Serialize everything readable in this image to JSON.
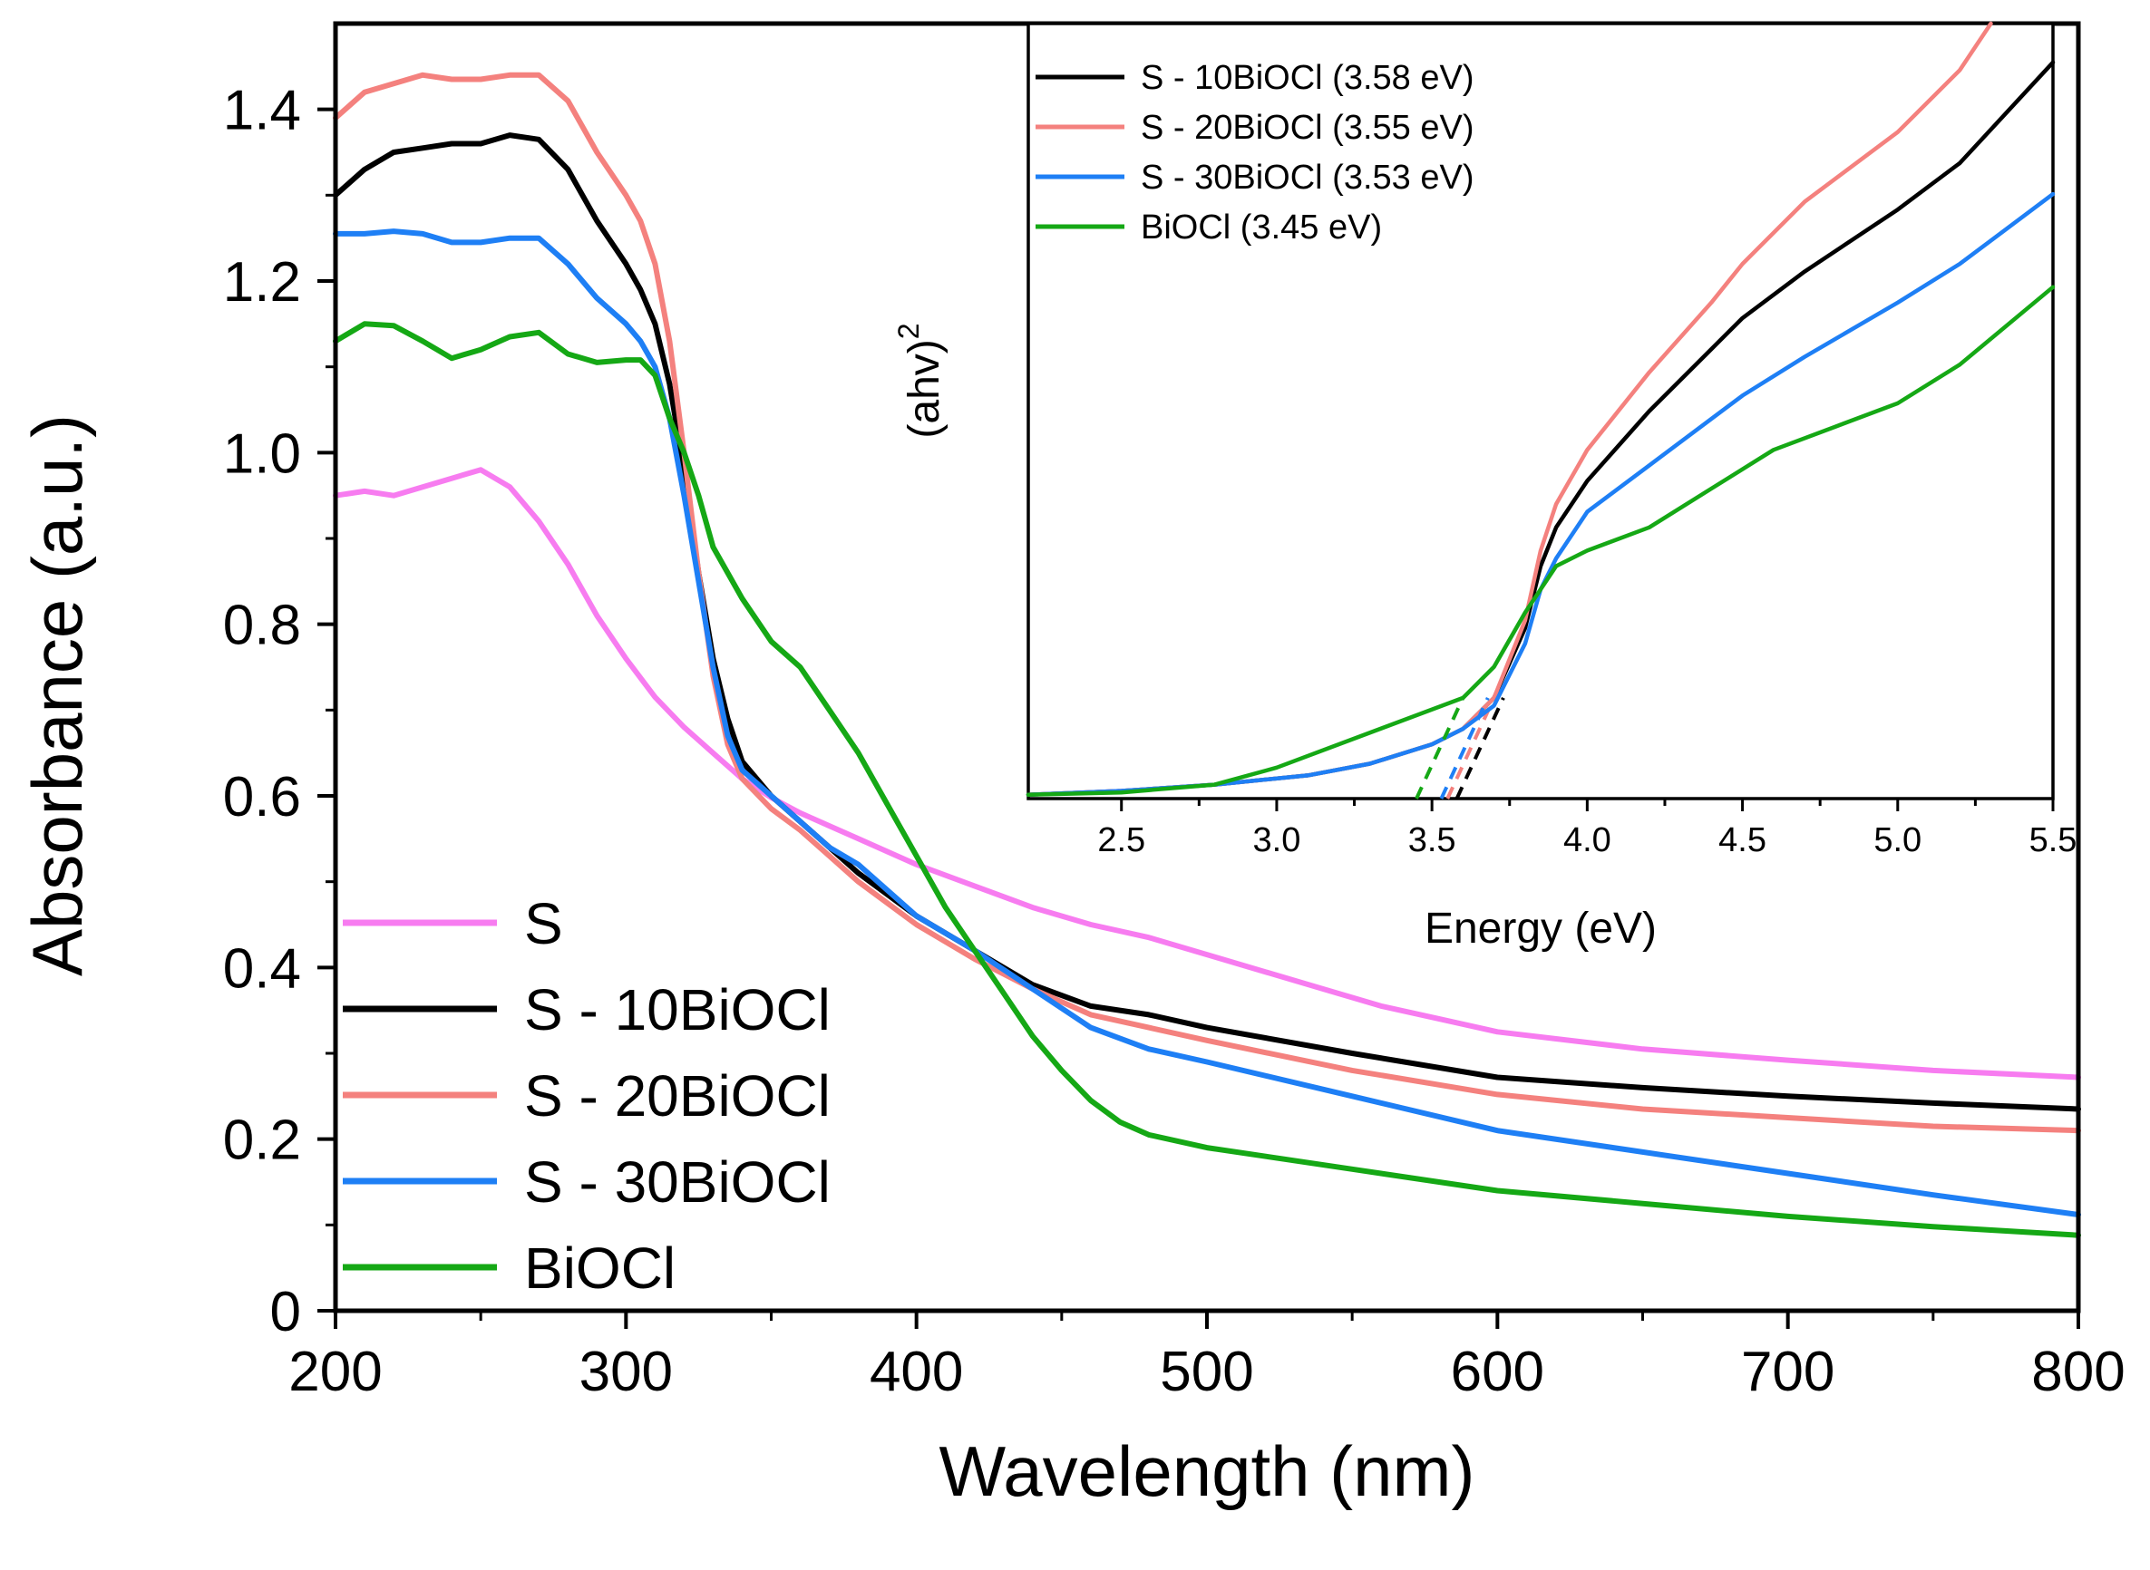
{
  "chart_data": [
    {
      "type": "line",
      "title": "",
      "xlabel": "Wavelength (nm)",
      "ylabel": "Absorbance (a.u.)",
      "xlim": [
        200,
        800
      ],
      "ylim": [
        0,
        1.5
      ],
      "xticks": [
        "200",
        "300",
        "400",
        "500",
        "600",
        "700",
        "800"
      ],
      "yticks": [
        "0",
        "0.2",
        "0.4",
        "0.6",
        "0.8",
        "1.0",
        "1.2",
        "1.4"
      ],
      "legend_position": "bottom-left",
      "series": [
        {
          "name": "S",
          "color": "#f77cf0",
          "x": [
            200,
            210,
            220,
            230,
            240,
            250,
            260,
            270,
            280,
            290,
            300,
            310,
            320,
            330,
            340,
            350,
            360,
            370,
            380,
            390,
            400,
            420,
            440,
            460,
            480,
            500,
            520,
            540,
            560,
            580,
            600,
            650,
            700,
            750,
            800
          ],
          "y": [
            0.95,
            0.955,
            0.95,
            0.96,
            0.97,
            0.98,
            0.96,
            0.92,
            0.87,
            0.81,
            0.76,
            0.715,
            0.68,
            0.65,
            0.62,
            0.598,
            0.58,
            0.565,
            0.55,
            0.535,
            0.52,
            0.495,
            0.47,
            0.45,
            0.435,
            0.415,
            0.395,
            0.375,
            0.355,
            0.34,
            0.325,
            0.305,
            0.292,
            0.28,
            0.272
          ]
        },
        {
          "name": "S - 10BiOCl",
          "color": "#000000",
          "x": [
            200,
            210,
            220,
            230,
            240,
            250,
            260,
            270,
            280,
            290,
            300,
            305,
            310,
            315,
            320,
            325,
            330,
            335,
            340,
            350,
            360,
            370,
            380,
            400,
            420,
            440,
            460,
            480,
            500,
            550,
            600,
            650,
            700,
            750,
            800
          ],
          "y": [
            1.3,
            1.33,
            1.35,
            1.355,
            1.36,
            1.36,
            1.37,
            1.365,
            1.33,
            1.27,
            1.22,
            1.19,
            1.15,
            1.08,
            0.98,
            0.86,
            0.76,
            0.69,
            0.64,
            0.6,
            0.57,
            0.54,
            0.51,
            0.46,
            0.42,
            0.38,
            0.355,
            0.345,
            0.33,
            0.3,
            0.272,
            0.26,
            0.25,
            0.242,
            0.235
          ]
        },
        {
          "name": "S - 20BiOCl",
          "color": "#f4817e",
          "x": [
            200,
            210,
            220,
            230,
            240,
            250,
            260,
            270,
            280,
            290,
            300,
            305,
            310,
            315,
            320,
            325,
            330,
            335,
            340,
            350,
            360,
            370,
            380,
            400,
            420,
            440,
            460,
            480,
            500,
            550,
            600,
            650,
            700,
            750,
            800
          ],
          "y": [
            1.39,
            1.42,
            1.43,
            1.44,
            1.435,
            1.435,
            1.44,
            1.44,
            1.41,
            1.35,
            1.3,
            1.27,
            1.22,
            1.13,
            1.0,
            0.86,
            0.74,
            0.66,
            0.62,
            0.585,
            0.56,
            0.53,
            0.5,
            0.45,
            0.41,
            0.375,
            0.345,
            0.33,
            0.315,
            0.28,
            0.252,
            0.235,
            0.225,
            0.215,
            0.21
          ]
        },
        {
          "name": "S - 30BiOCl",
          "color": "#1e7ff5",
          "x": [
            200,
            210,
            220,
            230,
            240,
            250,
            260,
            270,
            280,
            290,
            300,
            305,
            310,
            315,
            320,
            325,
            330,
            335,
            340,
            350,
            360,
            370,
            380,
            400,
            420,
            440,
            460,
            480,
            500,
            550,
            600,
            650,
            700,
            750,
            800
          ],
          "y": [
            1.255,
            1.255,
            1.258,
            1.255,
            1.245,
            1.245,
            1.25,
            1.25,
            1.22,
            1.18,
            1.15,
            1.13,
            1.1,
            1.04,
            0.95,
            0.85,
            0.75,
            0.67,
            0.63,
            0.6,
            0.57,
            0.54,
            0.52,
            0.46,
            0.42,
            0.375,
            0.33,
            0.305,
            0.29,
            0.25,
            0.21,
            0.185,
            0.16,
            0.135,
            0.112
          ]
        },
        {
          "name": "BiOCl",
          "color": "#15a815",
          "x": [
            200,
            210,
            220,
            230,
            240,
            250,
            260,
            270,
            280,
            290,
            300,
            305,
            310,
            315,
            320,
            325,
            330,
            340,
            350,
            360,
            370,
            380,
            390,
            400,
            410,
            420,
            430,
            440,
            450,
            460,
            470,
            480,
            500,
            550,
            600,
            650,
            700,
            750,
            800
          ],
          "y": [
            1.13,
            1.15,
            1.148,
            1.13,
            1.11,
            1.12,
            1.135,
            1.14,
            1.115,
            1.105,
            1.108,
            1.108,
            1.09,
            1.04,
            1.0,
            0.95,
            0.89,
            0.83,
            0.78,
            0.75,
            0.7,
            0.65,
            0.59,
            0.53,
            0.47,
            0.42,
            0.37,
            0.32,
            0.28,
            0.245,
            0.22,
            0.205,
            0.19,
            0.165,
            0.14,
            0.125,
            0.11,
            0.098,
            0.088
          ]
        }
      ]
    },
    {
      "type": "line",
      "title": "",
      "xlabel": "Energy (eV)",
      "ylabel_base": "(ahv)",
      "ylabel_superscript": "2",
      "xlim": [
        2.2,
        5.5
      ],
      "ylim": [
        0,
        1
      ],
      "xticks": [
        "2.5",
        "3.0",
        "3.5",
        "4.0",
        "4.5",
        "5.0",
        "5.5"
      ],
      "legend_position": "top-left",
      "series": [
        {
          "name": "S - 10BiOCl (3.58 eV)",
          "color": "#000000",
          "bandgap_eV": 3.58,
          "x": [
            2.2,
            2.5,
            2.8,
            3.1,
            3.3,
            3.5,
            3.6,
            3.7,
            3.8,
            3.85,
            3.9,
            4.0,
            4.2,
            4.4,
            4.5,
            4.7,
            5.0,
            5.2,
            5.5
          ],
          "y": [
            0.005,
            0.01,
            0.018,
            0.03,
            0.045,
            0.07,
            0.09,
            0.13,
            0.22,
            0.3,
            0.35,
            0.41,
            0.5,
            0.58,
            0.62,
            0.68,
            0.76,
            0.82,
            0.95
          ]
        },
        {
          "name": "S - 20BiOCl (3.55 eV)",
          "color": "#f4817e",
          "bandgap_eV": 3.55,
          "x": [
            2.2,
            2.5,
            2.8,
            3.1,
            3.3,
            3.5,
            3.6,
            3.7,
            3.8,
            3.85,
            3.9,
            4.0,
            4.2,
            4.4,
            4.5,
            4.7,
            5.0,
            5.2,
            5.3
          ],
          "y": [
            0.005,
            0.01,
            0.018,
            0.03,
            0.045,
            0.07,
            0.09,
            0.13,
            0.23,
            0.32,
            0.38,
            0.45,
            0.55,
            0.64,
            0.69,
            0.77,
            0.86,
            0.94,
            1.0
          ]
        },
        {
          "name": "S - 30BiOCl (3.53 eV)",
          "color": "#1e7ff5",
          "bandgap_eV": 3.53,
          "x": [
            2.2,
            2.5,
            2.8,
            3.1,
            3.3,
            3.5,
            3.6,
            3.7,
            3.8,
            3.85,
            3.9,
            4.0,
            4.2,
            4.4,
            4.5,
            4.7,
            5.0,
            5.2,
            5.5
          ],
          "y": [
            0.005,
            0.01,
            0.018,
            0.03,
            0.045,
            0.07,
            0.09,
            0.12,
            0.2,
            0.27,
            0.31,
            0.37,
            0.43,
            0.49,
            0.52,
            0.57,
            0.64,
            0.69,
            0.78
          ]
        },
        {
          "name": "BiOCl (3.45 eV)",
          "color": "#15a815",
          "bandgap_eV": 3.45,
          "x": [
            2.2,
            2.5,
            2.8,
            3.0,
            3.2,
            3.4,
            3.6,
            3.7,
            3.8,
            3.9,
            4.0,
            4.2,
            4.4,
            4.6,
            4.8,
            5.0,
            5.2,
            5.5
          ],
          "y": [
            0.005,
            0.008,
            0.018,
            0.04,
            0.07,
            0.1,
            0.13,
            0.17,
            0.24,
            0.3,
            0.32,
            0.35,
            0.4,
            0.45,
            0.48,
            0.51,
            0.56,
            0.66
          ]
        }
      ]
    }
  ]
}
